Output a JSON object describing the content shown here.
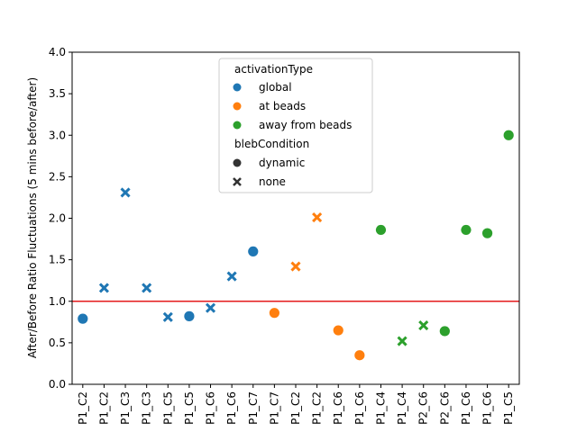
{
  "chart_data": {
    "type": "scatter",
    "title": "",
    "xlabel": "",
    "ylabel": "After/Before Ratio Fluctuations (5 mins before/after)",
    "ylim": [
      0,
      4.0
    ],
    "yticks": [
      "0.0",
      "0.5",
      "1.0",
      "1.5",
      "2.0",
      "2.5",
      "3.0",
      "3.5",
      "4.0"
    ],
    "categories": [
      "P1_C2",
      "P1_C2",
      "P1_C3",
      "P1_C3",
      "P1_C5",
      "P1_C5",
      "P1_C6",
      "P1_C6",
      "P1_C7",
      "P1_C7",
      "P1_C2",
      "P1_C2",
      "P1_C6",
      "P1_C6",
      "P1_C4",
      "P1_C4",
      "P2_C6",
      "P2_C6",
      "P1_C6",
      "P1_C6",
      "P1_C5"
    ],
    "reference_line": {
      "y": 1.0,
      "color": "#e41a1c"
    },
    "grid": false,
    "legend": {
      "placement": "top-center",
      "hue_title": "activationType",
      "hue_entries": [
        {
          "label": "global",
          "color": "#1f77b4"
        },
        {
          "label": "at beads",
          "color": "#ff7f0e"
        },
        {
          "label": "away from beads",
          "color": "#2ca02c"
        }
      ],
      "style_title": "blebCondition",
      "style_entries": [
        {
          "label": "dynamic",
          "marker": "circle"
        },
        {
          "label": "none",
          "marker": "x"
        }
      ]
    },
    "points": [
      {
        "x": 0,
        "y": 0.79,
        "activationType": "global",
        "blebCondition": "dynamic"
      },
      {
        "x": 1,
        "y": 1.16,
        "activationType": "global",
        "blebCondition": "none"
      },
      {
        "x": 2,
        "y": 2.31,
        "activationType": "global",
        "blebCondition": "none"
      },
      {
        "x": 3,
        "y": 1.16,
        "activationType": "global",
        "blebCondition": "none"
      },
      {
        "x": 4,
        "y": 0.81,
        "activationType": "global",
        "blebCondition": "none"
      },
      {
        "x": 5,
        "y": 0.82,
        "activationType": "global",
        "blebCondition": "dynamic"
      },
      {
        "x": 6,
        "y": 0.92,
        "activationType": "global",
        "blebCondition": "none"
      },
      {
        "x": 7,
        "y": 1.3,
        "activationType": "global",
        "blebCondition": "none"
      },
      {
        "x": 8,
        "y": 1.6,
        "activationType": "global",
        "blebCondition": "dynamic"
      },
      {
        "x": 9,
        "y": 0.86,
        "activationType": "at beads",
        "blebCondition": "dynamic"
      },
      {
        "x": 10,
        "y": 1.42,
        "activationType": "at beads",
        "blebCondition": "none"
      },
      {
        "x": 11,
        "y": 2.01,
        "activationType": "at beads",
        "blebCondition": "none"
      },
      {
        "x": 12,
        "y": 0.65,
        "activationType": "at beads",
        "blebCondition": "dynamic"
      },
      {
        "x": 13,
        "y": 0.35,
        "activationType": "at beads",
        "blebCondition": "dynamic"
      },
      {
        "x": 14,
        "y": 1.86,
        "activationType": "away from beads",
        "blebCondition": "dynamic"
      },
      {
        "x": 15,
        "y": 0.52,
        "activationType": "away from beads",
        "blebCondition": "none"
      },
      {
        "x": 16,
        "y": 0.71,
        "activationType": "away from beads",
        "blebCondition": "none"
      },
      {
        "x": 17,
        "y": 0.64,
        "activationType": "away from beads",
        "blebCondition": "dynamic"
      },
      {
        "x": 18,
        "y": 1.86,
        "activationType": "away from beads",
        "blebCondition": "dynamic"
      },
      {
        "x": 19,
        "y": 1.82,
        "activationType": "away from beads",
        "blebCondition": "dynamic"
      },
      {
        "x": 20,
        "y": 3.0,
        "activationType": "away from beads",
        "blebCondition": "dynamic"
      }
    ]
  }
}
